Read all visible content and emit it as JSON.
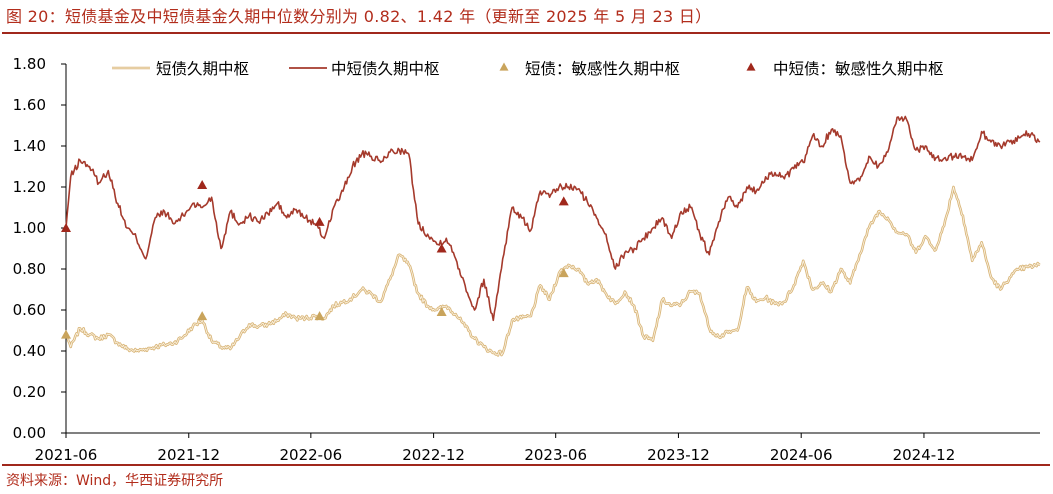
{
  "title": "图 20：短债基金及中短债基金久期中位数分别为 0.82、1.42 年（更新至 2025 年 5 月 23 日）",
  "source": "资料来源：Wind，华西证券研究所",
  "chart_data": {
    "type": "line",
    "ylim": [
      0,
      1.8
    ],
    "y_ticks": [
      "0.00",
      "0.20",
      "0.40",
      "0.60",
      "0.80",
      "1.00",
      "1.20",
      "1.40",
      "1.60",
      "1.80"
    ],
    "x_ticks": [
      "2021-06",
      "2021-12",
      "2022-06",
      "2022-12",
      "2023-06",
      "2023-12",
      "2024-06",
      "2024-12"
    ],
    "grid": false,
    "legend_position": "top",
    "colors": {
      "short": "#d9b67a",
      "mid": "#a53a2c",
      "short_marker": "#c9a45c",
      "mid_marker": "#a0281c"
    },
    "series": [
      {
        "name": "短债久期中枢",
        "x": [
          "2021-06-01",
          "2021-06-08",
          "2021-06-22",
          "2021-07-06",
          "2021-07-20",
          "2021-08-03",
          "2021-08-17",
          "2021-08-31",
          "2021-09-14",
          "2021-09-28",
          "2021-10-12",
          "2021-10-26",
          "2021-11-09",
          "2021-11-23",
          "2021-12-07",
          "2021-12-21",
          "2022-01-04",
          "2022-01-18",
          "2022-02-01",
          "2022-02-15",
          "2022-03-01",
          "2022-03-15",
          "2022-03-29",
          "2022-04-12",
          "2022-04-26",
          "2022-05-10",
          "2022-05-24",
          "2022-06-07",
          "2022-06-21",
          "2022-07-05",
          "2022-07-19",
          "2022-08-02",
          "2022-08-16",
          "2022-08-30",
          "2022-09-13",
          "2022-09-27",
          "2022-10-11",
          "2022-10-25",
          "2022-11-08",
          "2022-11-22",
          "2022-12-06",
          "2022-12-20",
          "2023-01-03",
          "2023-01-17",
          "2023-01-31",
          "2023-02-14",
          "2023-02-28",
          "2023-03-14",
          "2023-03-28",
          "2023-04-11",
          "2023-04-25",
          "2023-05-09",
          "2023-05-23",
          "2023-06-06",
          "2023-06-20",
          "2023-07-04",
          "2023-07-18",
          "2023-08-01",
          "2023-08-15",
          "2023-08-29",
          "2023-09-12",
          "2023-09-26",
          "2023-10-10",
          "2023-10-24",
          "2023-11-07",
          "2023-11-21",
          "2023-12-05",
          "2023-12-19",
          "2024-01-02",
          "2024-01-16",
          "2024-01-30",
          "2024-02-13",
          "2024-02-27",
          "2024-03-12",
          "2024-03-26",
          "2024-04-09",
          "2024-04-23",
          "2024-05-07",
          "2024-05-21",
          "2024-06-04",
          "2024-06-18",
          "2024-07-02",
          "2024-07-16",
          "2024-07-30",
          "2024-08-13",
          "2024-08-27",
          "2024-09-10",
          "2024-09-24",
          "2024-10-08",
          "2024-10-22",
          "2024-11-05",
          "2024-11-19",
          "2024-12-03",
          "2024-12-17",
          "2024-12-31",
          "2025-01-14",
          "2025-01-28",
          "2025-02-11",
          "2025-02-25",
          "2025-03-11",
          "2025-03-25",
          "2025-04-08",
          "2025-04-22",
          "2025-05-06",
          "2025-05-23"
        ],
        "values": [
          0.49,
          0.42,
          0.51,
          0.48,
          0.46,
          0.48,
          0.44,
          0.41,
          0.4,
          0.41,
          0.42,
          0.43,
          0.44,
          0.47,
          0.52,
          0.55,
          0.45,
          0.42,
          0.41,
          0.47,
          0.53,
          0.52,
          0.53,
          0.55,
          0.58,
          0.56,
          0.56,
          0.57,
          0.56,
          0.62,
          0.64,
          0.66,
          0.7,
          0.68,
          0.64,
          0.75,
          0.87,
          0.82,
          0.68,
          0.62,
          0.6,
          0.62,
          0.58,
          0.52,
          0.46,
          0.42,
          0.39,
          0.39,
          0.55,
          0.56,
          0.57,
          0.72,
          0.65,
          0.78,
          0.82,
          0.8,
          0.73,
          0.75,
          0.68,
          0.63,
          0.69,
          0.62,
          0.47,
          0.45,
          0.65,
          0.62,
          0.63,
          0.69,
          0.68,
          0.51,
          0.47,
          0.49,
          0.5,
          0.71,
          0.64,
          0.66,
          0.63,
          0.64,
          0.72,
          0.84,
          0.7,
          0.73,
          0.69,
          0.8,
          0.73,
          0.87,
          1.0,
          1.08,
          1.05,
          0.98,
          0.97,
          0.88,
          0.96,
          0.89,
          1.01,
          1.2,
          1.06,
          0.84,
          0.93,
          0.76,
          0.7,
          0.76,
          0.8,
          0.81,
          0.82
        ]
      },
      {
        "name": "中短债久期中枢",
        "x": [
          "2021-06-01",
          "2021-06-08",
          "2021-06-22",
          "2021-07-06",
          "2021-07-20",
          "2021-08-03",
          "2021-08-17",
          "2021-08-31",
          "2021-09-14",
          "2021-09-28",
          "2021-10-12",
          "2021-10-26",
          "2021-11-09",
          "2021-11-23",
          "2021-12-07",
          "2021-12-21",
          "2022-01-04",
          "2022-01-18",
          "2022-02-01",
          "2022-02-15",
          "2022-03-01",
          "2022-03-15",
          "2022-03-29",
          "2022-04-12",
          "2022-04-26",
          "2022-05-10",
          "2022-05-24",
          "2022-06-07",
          "2022-06-21",
          "2022-07-05",
          "2022-07-19",
          "2022-08-02",
          "2022-08-16",
          "2022-08-30",
          "2022-09-13",
          "2022-09-27",
          "2022-10-11",
          "2022-10-25",
          "2022-11-08",
          "2022-11-22",
          "2022-12-06",
          "2022-12-20",
          "2023-01-03",
          "2023-01-17",
          "2023-01-31",
          "2023-02-14",
          "2023-02-28",
          "2023-03-14",
          "2023-03-28",
          "2023-04-11",
          "2023-04-25",
          "2023-05-09",
          "2023-05-23",
          "2023-06-06",
          "2023-06-20",
          "2023-07-04",
          "2023-07-18",
          "2023-08-01",
          "2023-08-15",
          "2023-08-29",
          "2023-09-12",
          "2023-09-26",
          "2023-10-10",
          "2023-10-24",
          "2023-11-07",
          "2023-11-21",
          "2023-12-05",
          "2023-12-19",
          "2024-01-02",
          "2024-01-16",
          "2024-01-30",
          "2024-02-13",
          "2024-02-27",
          "2024-03-12",
          "2024-03-26",
          "2024-04-09",
          "2024-04-23",
          "2024-05-07",
          "2024-05-21",
          "2024-06-04",
          "2024-06-18",
          "2024-07-02",
          "2024-07-16",
          "2024-07-30",
          "2024-08-13",
          "2024-08-27",
          "2024-09-10",
          "2024-09-24",
          "2024-10-08",
          "2024-10-22",
          "2024-11-05",
          "2024-11-19",
          "2024-12-03",
          "2024-12-17",
          "2024-12-31",
          "2025-01-14",
          "2025-01-28",
          "2025-02-11",
          "2025-02-25",
          "2025-03-11",
          "2025-03-25",
          "2025-04-08",
          "2025-04-22",
          "2025-05-06",
          "2025-05-23"
        ],
        "values": [
          1.0,
          1.25,
          1.33,
          1.3,
          1.22,
          1.28,
          1.12,
          1.0,
          0.95,
          0.85,
          1.05,
          1.08,
          1.02,
          1.06,
          1.12,
          1.1,
          1.15,
          0.9,
          1.08,
          1.02,
          1.06,
          1.03,
          1.07,
          1.12,
          1.05,
          1.09,
          1.05,
          1.02,
          0.95,
          1.1,
          1.18,
          1.3,
          1.36,
          1.35,
          1.32,
          1.37,
          1.38,
          1.36,
          1.02,
          0.97,
          0.92,
          0.95,
          0.85,
          0.72,
          0.6,
          0.75,
          0.55,
          0.85,
          1.1,
          1.05,
          0.99,
          1.18,
          1.15,
          1.2,
          1.2,
          1.19,
          1.13,
          1.05,
          0.97,
          0.8,
          0.88,
          0.9,
          0.95,
          1.0,
          1.05,
          0.95,
          1.08,
          1.1,
          0.97,
          0.87,
          1.03,
          1.15,
          1.1,
          1.2,
          1.18,
          1.25,
          1.27,
          1.24,
          1.29,
          1.32,
          1.45,
          1.4,
          1.48,
          1.45,
          1.22,
          1.23,
          1.35,
          1.3,
          1.37,
          1.54,
          1.53,
          1.38,
          1.4,
          1.33,
          1.34,
          1.35,
          1.35,
          1.33,
          1.47,
          1.42,
          1.4,
          1.42,
          1.44,
          1.46,
          1.42
        ]
      }
    ],
    "markers": [
      {
        "name": "短债：敏感性久期中枢",
        "x": [
          "2021-06-01",
          "2021-12-21",
          "2022-06-14",
          "2022-12-13",
          "2023-06-13"
        ],
        "values": [
          0.48,
          0.57,
          0.57,
          0.59,
          0.78
        ]
      },
      {
        "name": "中短债：敏感性久期中枢",
        "x": [
          "2021-06-01",
          "2021-12-21",
          "2022-06-14",
          "2022-12-13",
          "2023-06-13"
        ],
        "values": [
          1.0,
          1.21,
          1.03,
          0.9,
          1.13
        ]
      }
    ]
  }
}
